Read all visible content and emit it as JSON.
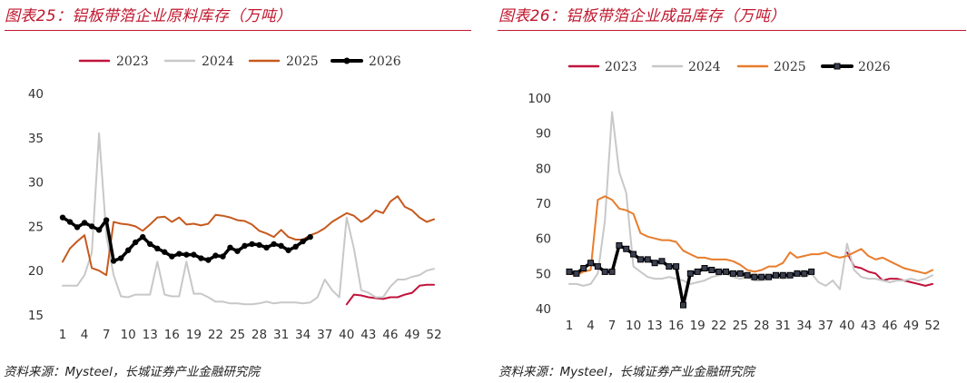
{
  "charts": [
    {
      "title": "图表25：铝板带箔企业原料库存（万吨）",
      "source": "资料来源：Mysteel，长城证券产业金融研究院"
    },
    {
      "title": "图表26：铝板带箔企业成品库存（万吨）",
      "source": "资料来源：Mysteel，长城证券产业金融研究院"
    }
  ],
  "chart_data": [
    {
      "type": "line",
      "title": "图表25：铝板带箔企业原料库存（万吨）",
      "xlabel": "",
      "ylabel": "",
      "ylim": [
        15,
        40
      ],
      "yticks": [
        15,
        20,
        25,
        30,
        35,
        40
      ],
      "xlim": [
        1,
        52
      ],
      "xticks": [
        1,
        4,
        7,
        10,
        13,
        16,
        19,
        22,
        25,
        28,
        31,
        34,
        37,
        40,
        43,
        46,
        49,
        52
      ],
      "legend_position": "top",
      "grid": false,
      "series": [
        {
          "name": "2023",
          "color": "#c0143c",
          "width": 2,
          "marker": "none",
          "x": [
            40,
            41,
            42,
            43,
            44,
            45,
            46,
            47,
            48,
            49,
            50,
            51,
            52
          ],
          "y": [
            16.2,
            17.3,
            17.2,
            17.0,
            16.9,
            16.8,
            17.0,
            17.0,
            17.3,
            17.5,
            18.3,
            18.4,
            18.4
          ]
        },
        {
          "name": "2024",
          "color": "#c8c8c8",
          "width": 2,
          "marker": "none",
          "x": [
            1,
            2,
            3,
            4,
            5,
            6,
            7,
            8,
            9,
            10,
            11,
            12,
            13,
            14,
            15,
            16,
            17,
            18,
            19,
            20,
            21,
            22,
            23,
            24,
            25,
            26,
            27,
            28,
            29,
            30,
            31,
            32,
            33,
            34,
            35,
            36,
            37,
            38,
            39,
            40,
            41,
            42,
            43,
            44,
            45,
            46,
            47,
            48,
            49,
            50,
            51,
            52
          ],
          "y": [
            18.3,
            18.3,
            18.3,
            19.5,
            22.0,
            35.5,
            24.0,
            19.5,
            17.1,
            17.0,
            17.3,
            17.3,
            17.3,
            21.0,
            17.3,
            17.1,
            17.1,
            21.0,
            17.4,
            17.4,
            17.0,
            16.5,
            16.5,
            16.3,
            16.3,
            16.2,
            16.2,
            16.3,
            16.5,
            16.3,
            16.4,
            16.4,
            16.4,
            16.3,
            16.4,
            17.0,
            19.0,
            17.8,
            17.0,
            26.0,
            22.5,
            17.8,
            17.5,
            17.0,
            17.0,
            18.2,
            19.0,
            19.0,
            19.3,
            19.5,
            20.0,
            20.2
          ]
        },
        {
          "name": "2025",
          "color": "#c65a1e",
          "width": 2,
          "marker": "none",
          "x": [
            1,
            2,
            3,
            4,
            5,
            6,
            7,
            8,
            9,
            10,
            11,
            12,
            13,
            14,
            15,
            16,
            17,
            18,
            19,
            20,
            21,
            22,
            23,
            24,
            25,
            26,
            27,
            28,
            29,
            30,
            31,
            32,
            33,
            34,
            35,
            36,
            37,
            38,
            39,
            40,
            41,
            42,
            43,
            44,
            45,
            46,
            47,
            48,
            49,
            50,
            51,
            52
          ],
          "y": [
            21.0,
            22.5,
            23.3,
            24.0,
            20.3,
            20.0,
            19.5,
            25.5,
            25.3,
            25.2,
            25.0,
            24.5,
            25.2,
            26.0,
            26.1,
            25.5,
            26.0,
            25.2,
            25.3,
            25.1,
            25.3,
            26.3,
            26.2,
            26.0,
            25.7,
            25.6,
            25.2,
            24.5,
            24.2,
            23.8,
            24.6,
            23.8,
            23.5,
            23.5,
            24.0,
            24.3,
            24.8,
            25.5,
            26.0,
            26.5,
            26.2,
            25.5,
            26.0,
            26.8,
            26.5,
            27.8,
            28.4,
            27.2,
            26.8,
            26.0,
            25.5,
            25.8
          ]
        },
        {
          "name": "2026",
          "color": "#000000",
          "width": 3.5,
          "marker": "circle",
          "x": [
            1,
            2,
            3,
            4,
            5,
            6,
            7,
            8,
            9,
            10,
            11,
            12,
            13,
            14,
            15,
            16,
            17,
            18,
            19,
            20,
            21,
            22,
            23,
            24,
            25,
            26,
            27,
            28,
            29,
            30,
            31,
            32,
            33,
            34,
            35
          ],
          "y": [
            26.0,
            25.5,
            24.9,
            25.4,
            25.0,
            24.6,
            25.7,
            21.1,
            21.4,
            22.3,
            23.2,
            23.8,
            23.0,
            22.5,
            22.1,
            21.6,
            21.9,
            21.8,
            21.8,
            21.4,
            21.2,
            21.7,
            21.6,
            22.6,
            22.2,
            22.8,
            23.0,
            22.9,
            22.6,
            23.0,
            22.8,
            22.3,
            22.7,
            23.3,
            23.8
          ]
        }
      ]
    },
    {
      "type": "line",
      "title": "图表26：铝板带箔企业成品库存（万吨）",
      "xlabel": "",
      "ylabel": "",
      "ylim": [
        40,
        100
      ],
      "yticks": [
        40,
        50,
        60,
        70,
        80,
        90,
        100
      ],
      "xlim": [
        1,
        52
      ],
      "xticks": [
        1,
        4,
        7,
        10,
        13,
        16,
        19,
        22,
        25,
        28,
        31,
        34,
        37,
        40,
        43,
        46,
        49,
        52
      ],
      "legend_position": "top",
      "grid": false,
      "series": [
        {
          "name": "2023",
          "color": "#c0143c",
          "width": 2,
          "marker": "none",
          "x": [
            40,
            41,
            42,
            43,
            44,
            45,
            46,
            47,
            48,
            49,
            50,
            51,
            52
          ],
          "y": [
            56.0,
            52.0,
            51.5,
            50.5,
            50.0,
            48.0,
            48.5,
            48.5,
            48.0,
            47.5,
            47.0,
            46.5,
            47.0
          ]
        },
        {
          "name": "2024",
          "color": "#c8c8c8",
          "width": 2,
          "marker": "none",
          "x": [
            1,
            2,
            3,
            4,
            5,
            6,
            7,
            8,
            9,
            10,
            11,
            12,
            13,
            14,
            15,
            16,
            17,
            18,
            19,
            20,
            21,
            22,
            23,
            24,
            25,
            26,
            27,
            28,
            29,
            30,
            31,
            32,
            33,
            34,
            35,
            36,
            37,
            38,
            39,
            40,
            41,
            42,
            43,
            44,
            45,
            46,
            47,
            48,
            49,
            50,
            51,
            52
          ],
          "y": [
            47.0,
            47.0,
            46.5,
            47.0,
            50.0,
            65.0,
            96.0,
            79.0,
            73.0,
            52.0,
            50.5,
            49.0,
            48.5,
            48.5,
            49.0,
            48.5,
            48.0,
            47.0,
            47.5,
            48.0,
            49.0,
            49.5,
            50.0,
            49.0,
            48.5,
            49.0,
            48.0,
            48.0,
            48.5,
            49.0,
            48.5,
            49.0,
            49.5,
            49.0,
            50.0,
            47.5,
            46.5,
            48.0,
            45.5,
            58.5,
            51.0,
            49.0,
            48.5,
            48.5,
            48.0,
            47.5,
            48.0,
            48.0,
            48.5,
            48.0,
            48.5,
            49.5
          ]
        },
        {
          "name": "2025",
          "color": "#e87d2d",
          "width": 2,
          "marker": "none",
          "x": [
            1,
            2,
            3,
            4,
            5,
            6,
            7,
            8,
            9,
            10,
            11,
            12,
            13,
            14,
            15,
            16,
            17,
            18,
            19,
            20,
            21,
            22,
            23,
            24,
            25,
            26,
            27,
            28,
            29,
            30,
            31,
            32,
            33,
            34,
            35,
            36,
            37,
            38,
            39,
            40,
            41,
            42,
            43,
            44,
            45,
            46,
            47,
            48,
            49,
            50,
            51,
            52
          ],
          "y": [
            50.0,
            49.5,
            50.5,
            51.0,
            71.0,
            72.0,
            71.0,
            68.5,
            68.0,
            67.0,
            61.5,
            60.5,
            60.0,
            59.5,
            59.5,
            59.0,
            56.5,
            55.5,
            54.5,
            54.5,
            54.0,
            54.0,
            54.0,
            53.5,
            52.5,
            51.0,
            50.5,
            51.0,
            52.0,
            52.0,
            53.0,
            56.0,
            54.5,
            55.0,
            55.5,
            55.5,
            56.0,
            55.0,
            54.5,
            55.0,
            56.0,
            57.0,
            55.0,
            54.0,
            54.5,
            53.5,
            52.5,
            51.5,
            51.0,
            50.5,
            50.0,
            51.0
          ]
        },
        {
          "name": "2026",
          "color": "#000000",
          "width": 3.5,
          "marker": "square",
          "x": [
            1,
            2,
            3,
            4,
            5,
            6,
            7,
            8,
            9,
            10,
            11,
            12,
            13,
            14,
            15,
            16,
            17,
            18,
            19,
            20,
            21,
            22,
            23,
            24,
            25,
            26,
            27,
            28,
            29,
            30,
            31,
            32,
            33,
            34,
            35
          ],
          "y": [
            50.5,
            50.0,
            51.5,
            53.0,
            52.0,
            50.5,
            50.5,
            58.0,
            57.0,
            55.5,
            54.0,
            54.0,
            53.0,
            53.5,
            52.0,
            52.0,
            41.0,
            50.0,
            50.5,
            51.5,
            51.0,
            50.5,
            50.5,
            50.0,
            50.0,
            49.5,
            49.0,
            49.0,
            49.0,
            49.5,
            49.5,
            49.5,
            50.0,
            50.0,
            50.5
          ]
        }
      ]
    }
  ]
}
